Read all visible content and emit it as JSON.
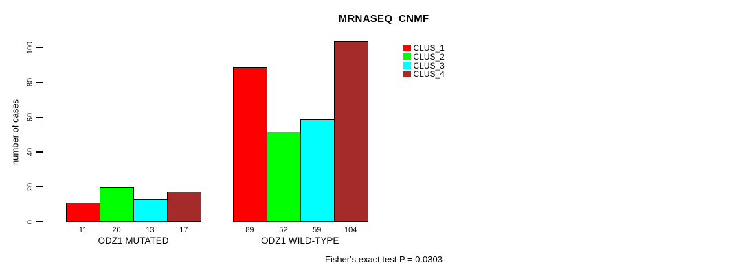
{
  "chart_data": {
    "type": "bar",
    "title": "MRNASEQ_CNMF",
    "ylabel": "number of cases",
    "xlabel": "",
    "ylim": [
      0,
      100
    ],
    "yticks": [
      0,
      20,
      40,
      60,
      80,
      100
    ],
    "grid": false,
    "legend_position": "top-right-inside",
    "categories": [
      "ODZ1 MUTATED",
      "ODZ1 WILD-TYPE"
    ],
    "series": [
      {
        "name": "CLUS_1",
        "color": "#FF0000",
        "values": [
          11,
          89
        ]
      },
      {
        "name": "CLUS_2",
        "color": "#00FF00",
        "values": [
          20,
          52
        ]
      },
      {
        "name": "CLUS_3",
        "color": "#00FFFF",
        "values": [
          13,
          59
        ]
      },
      {
        "name": "CLUS_4",
        "color": "#A52A2A",
        "values": [
          17,
          104
        ]
      }
    ],
    "groups": [
      {
        "label": "ODZ1 MUTATED",
        "values": [
          11,
          20,
          13,
          17
        ]
      },
      {
        "label": "ODZ1 WILD-TYPE",
        "values": [
          89,
          52,
          59,
          104
        ]
      }
    ],
    "bar_value_labels": [
      11,
      20,
      13,
      17,
      89,
      52,
      59,
      104
    ],
    "annotation": "Fisher's exact test P = 0.0303"
  }
}
